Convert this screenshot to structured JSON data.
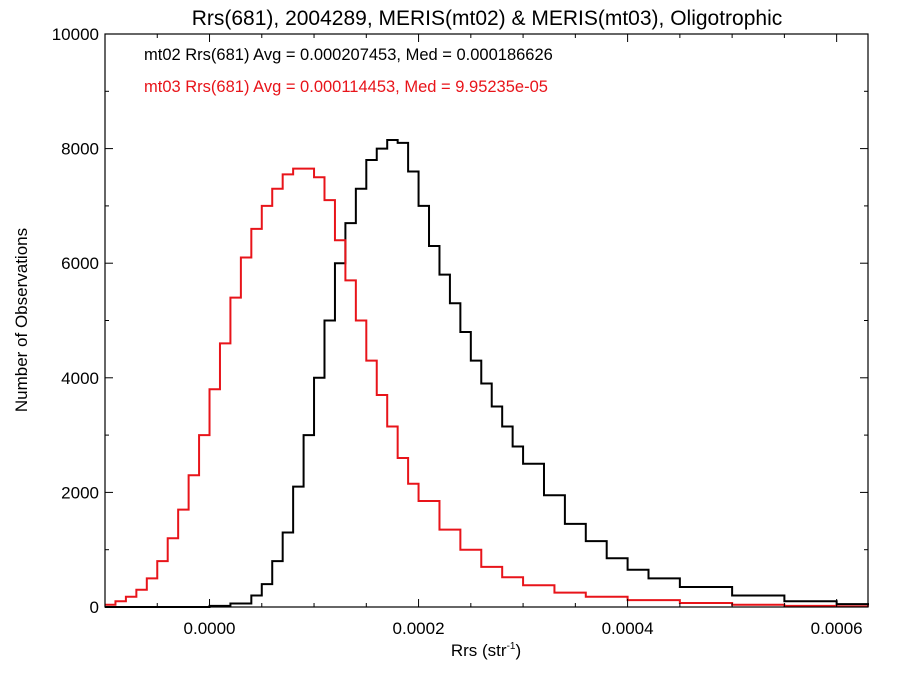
{
  "chart_data": {
    "type": "line",
    "title": "Rrs(681), 2004289, MERIS(mt02) & MERIS(mt03), Oligotrophic",
    "xlabel": "Rrs (str",
    "xlabel_superscript": "-1",
    "xlabel_suffix": ")",
    "ylabel": "Number of Observations",
    "xlim": [
      -0.0001,
      0.00063
    ],
    "ylim": [
      0,
      10000
    ],
    "x_ticks": [
      0.0,
      0.0002,
      0.0004,
      0.0006
    ],
    "x_tick_labels": [
      "0.0000",
      "0.0002",
      "0.0004",
      "0.0006"
    ],
    "y_ticks": [
      0,
      2000,
      4000,
      6000,
      8000,
      10000
    ],
    "y_tick_labels": [
      "0",
      "2000",
      "4000",
      "6000",
      "8000",
      "10000"
    ],
    "grid": false,
    "legend_position": "top-left",
    "series": [
      {
        "name": "mt02",
        "legend_text": "mt02 Rrs(681) Avg = 0.000207453, Med = 0.000186626",
        "color": "#000000",
        "x": [
          -0.0001,
          -4e-05,
          0.0,
          2e-05,
          4e-05,
          5e-05,
          6e-05,
          7e-05,
          8e-05,
          9e-05,
          0.0001,
          0.00011,
          0.00012,
          0.00013,
          0.00014,
          0.00015,
          0.00016,
          0.00017,
          0.00018,
          0.00019,
          0.0002,
          0.00021,
          0.00022,
          0.00023,
          0.00024,
          0.00025,
          0.00026,
          0.00027,
          0.00028,
          0.00029,
          0.0003,
          0.00032,
          0.00034,
          0.00036,
          0.00038,
          0.0004,
          0.00042,
          0.00045,
          0.0005,
          0.00055,
          0.0006,
          0.00063
        ],
        "values": [
          0,
          0,
          20,
          60,
          200,
          400,
          800,
          1300,
          2100,
          3000,
          4000,
          5000,
          6000,
          6700,
          7300,
          7800,
          8000,
          8150,
          8100,
          7600,
          7000,
          6300,
          5800,
          5300,
          4800,
          4300,
          3900,
          3500,
          3150,
          2800,
          2500,
          1950,
          1450,
          1150,
          850,
          650,
          500,
          350,
          200,
          100,
          50,
          30
        ]
      },
      {
        "name": "mt03",
        "legend_text": "mt03 Rrs(681) Avg = 0.000114453, Med = 9.95235e-05",
        "color": "#e8141a",
        "x": [
          -0.0001,
          -9e-05,
          -8e-05,
          -7e-05,
          -6e-05,
          -5e-05,
          -4e-05,
          -3e-05,
          -2e-05,
          -1e-05,
          0.0,
          1e-05,
          2e-05,
          3e-05,
          4e-05,
          5e-05,
          6e-05,
          7e-05,
          8e-05,
          9e-05,
          0.0001,
          0.00011,
          0.00012,
          0.00013,
          0.00014,
          0.00015,
          0.00016,
          0.00017,
          0.00018,
          0.00019,
          0.0002,
          0.00022,
          0.00024,
          0.00026,
          0.00028,
          0.0003,
          0.00033,
          0.00036,
          0.0004,
          0.00045,
          0.0005,
          0.00055,
          0.0006,
          0.00063
        ],
        "values": [
          40,
          100,
          180,
          300,
          500,
          800,
          1200,
          1700,
          2300,
          3000,
          3800,
          4600,
          5400,
          6100,
          6600,
          7000,
          7300,
          7550,
          7650,
          7650,
          7500,
          7100,
          6400,
          5700,
          5000,
          4300,
          3700,
          3150,
          2600,
          2150,
          1850,
          1350,
          1000,
          700,
          520,
          380,
          250,
          180,
          120,
          70,
          40,
          20,
          10,
          5
        ]
      }
    ]
  }
}
